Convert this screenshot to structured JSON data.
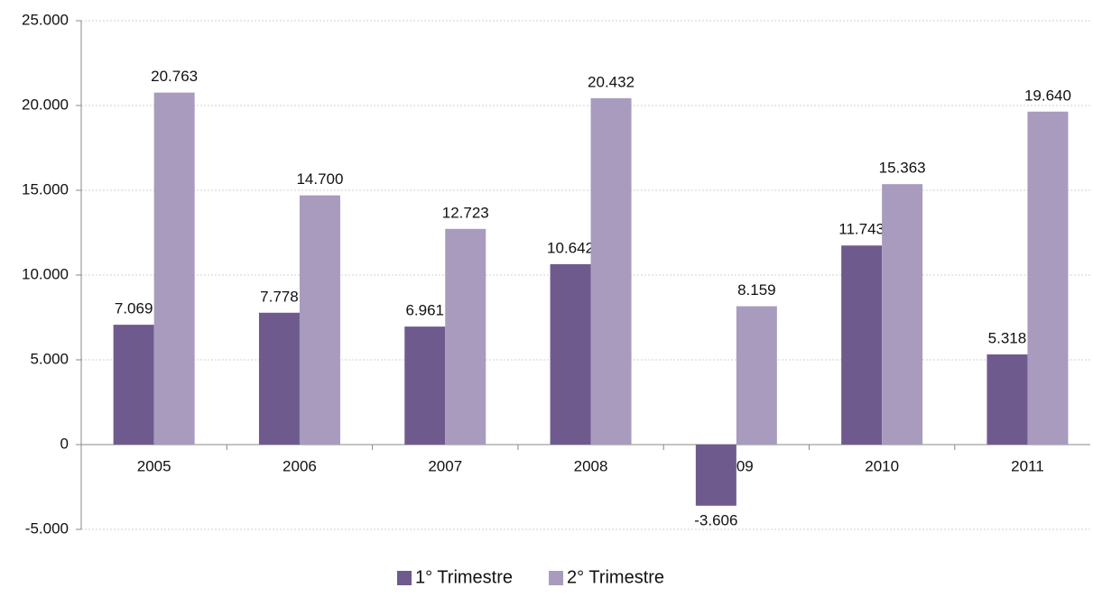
{
  "chart_data": {
    "type": "bar",
    "categories": [
      "2005",
      "2006",
      "2007",
      "2008",
      "2009",
      "2010",
      "2011"
    ],
    "series": [
      {
        "name": "1° Trimestre",
        "color": "#6f5a8e",
        "values": [
          7069,
          7778,
          6961,
          10642,
          -3606,
          11743,
          5318
        ],
        "value_labels": [
          "7.069",
          "7.778",
          "6.961",
          "10.642",
          "-3.606",
          "11.743",
          "5.318"
        ]
      },
      {
        "name": "2° Trimestre",
        "color": "#a89bbd",
        "values": [
          20763,
          14700,
          12723,
          20432,
          8159,
          15363,
          19640
        ],
        "value_labels": [
          "20.763",
          "14.700",
          "12.723",
          "20.432",
          "8.159",
          "15.363",
          "19.640"
        ]
      }
    ],
    "ylim": [
      -5000,
      25000
    ],
    "yticks": [
      {
        "value": -5000,
        "label": "-5.000"
      },
      0,
      {
        "value": 5000,
        "label": "5.000"
      },
      {
        "value": 10000,
        "label": "10.000"
      },
      {
        "value": 15000,
        "label": "15.000"
      },
      {
        "value": 20000,
        "label": "20.000"
      },
      {
        "value": 25000,
        "label": "25.000"
      }
    ],
    "grid": true,
    "legend": "bottom"
  }
}
